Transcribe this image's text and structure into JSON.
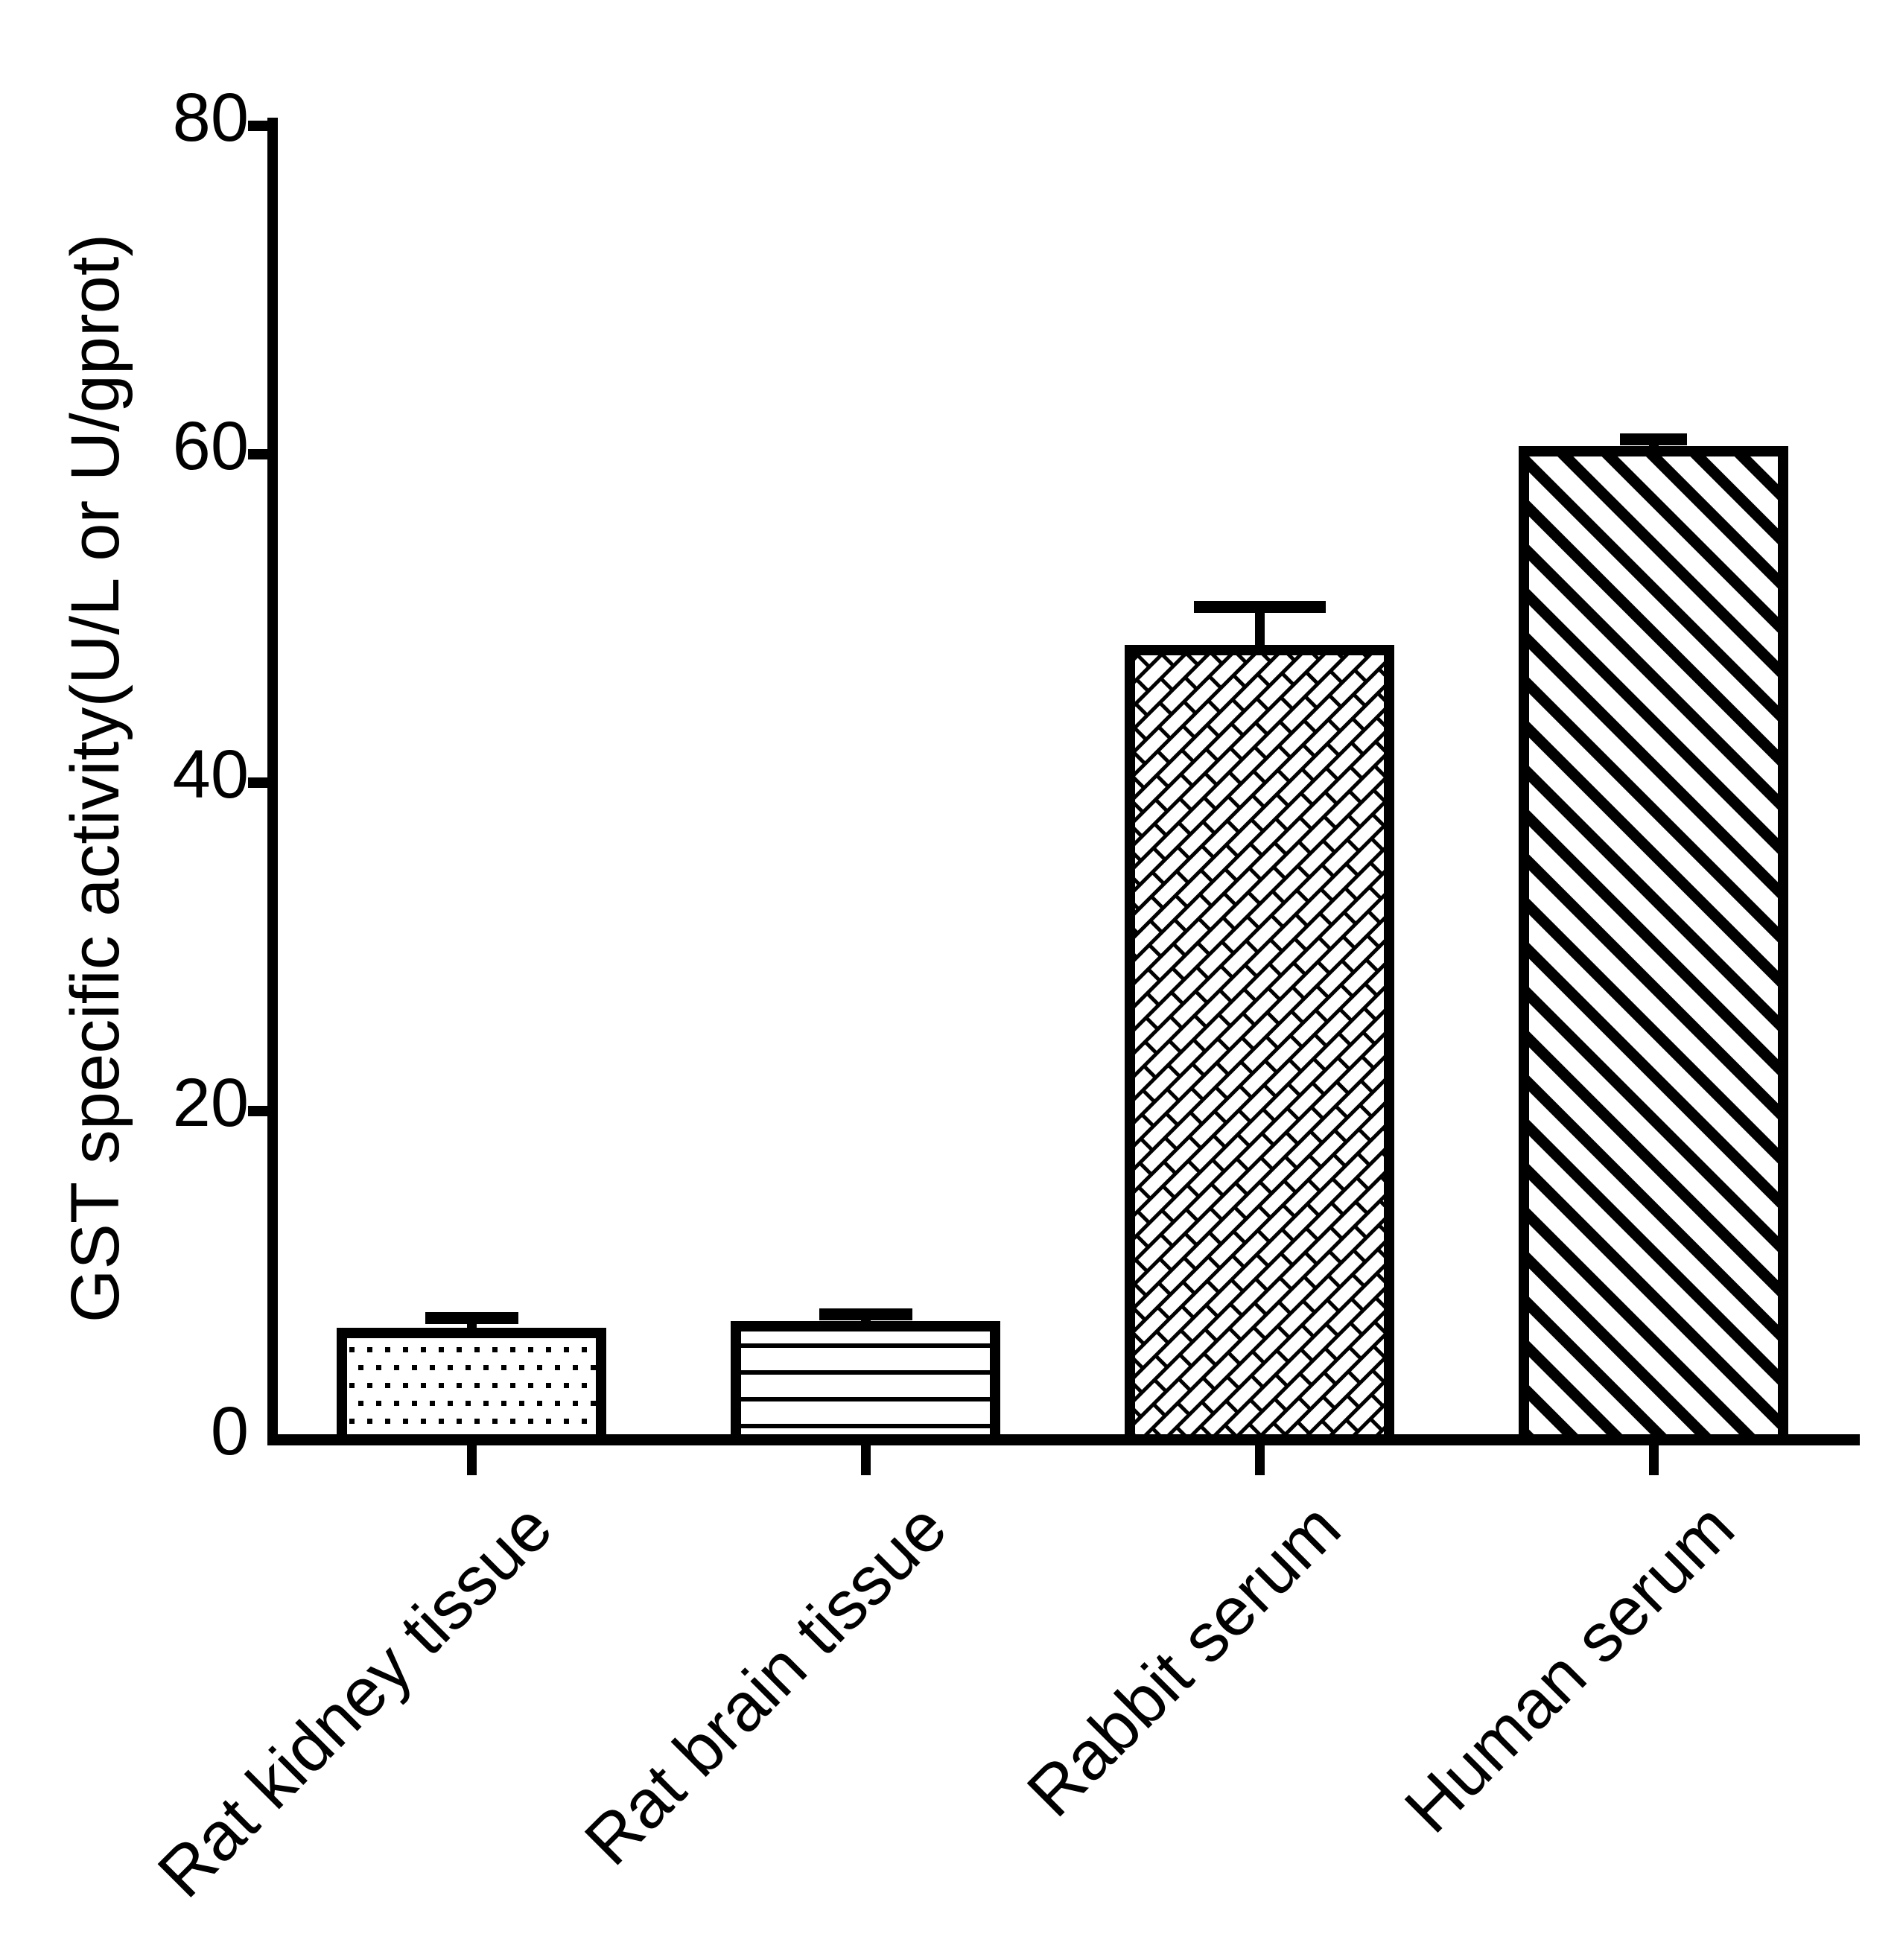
{
  "chart_data": {
    "type": "bar",
    "title": "",
    "ylabel": "GST specific activity(U/L or U/gprot)",
    "xlabel": "",
    "categories": [
      "Rat kidney tissue",
      "Rat brain tissue",
      "Rabbit serum",
      "Human serum"
    ],
    "values": [
      6.8,
      7.2,
      48.4,
      60.5
    ],
    "errors": [
      0.6,
      0.4,
      2.3,
      0.4
    ],
    "error_style": "upper T-bar",
    "yticks": [
      0,
      20,
      40,
      60,
      80
    ],
    "ylim": [
      0,
      80
    ],
    "bar_patterns": [
      "dots",
      "horizontal-lines",
      "diagonal-bricks",
      "diagonal-stripes"
    ],
    "bar_fill_color": "#ffffff",
    "ink_color": "#000000",
    "background_color": "#ffffff",
    "grid": false,
    "legend": false
  }
}
